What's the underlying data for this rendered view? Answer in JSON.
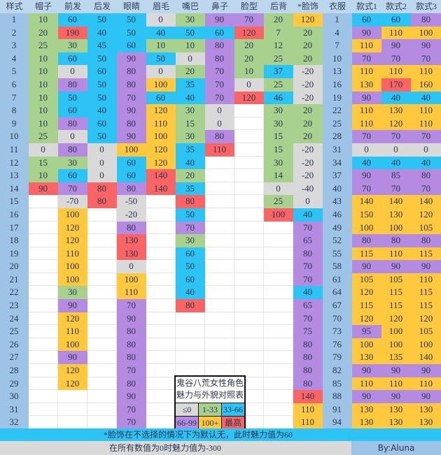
{
  "headers": [
    "样式",
    "帽子",
    "前发",
    "后发",
    "眼睛",
    "眉毛",
    "嘴巴",
    "鼻子",
    "脸型",
    "后背",
    "*脸饰",
    "衣服",
    "款式1",
    "款式2",
    "款式3"
  ],
  "columns": {
    "帽子": [
      10,
      20,
      25,
      10,
      10,
      10,
      10,
      10,
      10,
      25,
      0,
      15,
      10,
      90
    ],
    "前发": [
      60,
      190,
      30,
      60,
      0,
      80,
      50,
      60,
      80,
      0,
      80,
      30,
      60,
      70,
      -70,
      100,
      120,
      120,
      110,
      100,
      100,
      30,
      90,
      120,
      110,
      100,
      90,
      120,
      120
    ],
    "后发": [
      50,
      40,
      45,
      50,
      60,
      50,
      50,
      40,
      60,
      50,
      0,
      0,
      0,
      80,
      80
    ],
    "眼睛": [
      50,
      50,
      60,
      90,
      80,
      80,
      70,
      90,
      80,
      90,
      100,
      60,
      60,
      80,
      -50,
      -20,
      80,
      130,
      130,
      0,
      100,
      110,
      70,
      90,
      80,
      80,
      80,
      70,
      80,
      90,
      70,
      70
    ],
    "眉毛": [
      0,
      40,
      10,
      50,
      0,
      100,
      60,
      120,
      110,
      100,
      120,
      120,
      140,
      140
    ],
    "嘴巴": [
      30,
      50,
      10,
      0,
      20,
      35,
      40,
      30,
      15,
      30,
      35,
      40,
      20,
      35,
      80,
      50,
      70,
      30,
      60,
      50,
      60,
      40,
      80
    ],
    "鼻子": [
      90,
      60,
      80,
      80,
      70,
      70,
      70,
      0,
      0,
      80,
      110
    ],
    "脸型": [
      70,
      120,
      20,
      20,
      10,
      0,
      120
    ],
    "后背": [
      20,
      7,
      12,
      25,
      37,
      25,
      46,
      30,
      30,
      15,
      15,
      30,
      14,
      0,
      25,
      100
    ],
    "*脸饰": [
      120,
      20,
      20,
      20,
      -20,
      -20,
      -20,
      20,
      20,
      20,
      -20,
      -20,
      -20,
      -40,
      0,
      40,
      70,
      65,
      80,
      70,
      70,
      40,
      65,
      70,
      75,
      80,
      80,
      80,
      80,
      140,
      110,
      110
    ],
    "衣服": [
      1,
      4,
      7,
      10,
      13,
      16,
      19,
      22,
      25,
      28,
      31,
      34,
      37,
      40,
      43,
      46,
      49,
      52,
      55,
      58,
      61,
      64,
      67,
      70,
      73,
      76,
      79,
      82,
      85,
      88,
      91,
      94
    ],
    "款式1": [
      60,
      90,
      110,
      70,
      110,
      130,
      90,
      110,
      110,
      70,
      0,
      40,
      90,
      70,
      140,
      150,
      100,
      80,
      115,
      90,
      105,
      120,
      115,
      120,
      95,
      100,
      130,
      90,
      110,
      90,
      130,
      130
    ],
    "款式2": [
      60,
      110,
      90,
      70,
      110,
      170,
      40,
      130,
      120,
      70,
      0,
      40,
      85,
      70,
      140,
      130,
      100,
      80,
      110,
      90,
      105,
      115,
      115,
      120,
      100,
      100,
      135,
      90,
      110,
      90,
      130,
      130
    ],
    "款式3": [
      80,
      100,
      90,
      70,
      110,
      160,
      40,
      110,
      110,
      70,
      0,
      40,
      80,
      70,
      140,
      120,
      105,
      80,
      115,
      90,
      110,
      115,
      115,
      120,
      105,
      100,
      140,
      90,
      110,
      90,
      130,
      130
    ]
  },
  "row_count": 32,
  "legend": {
    "title_line1": "鬼谷八荒女性角色",
    "title_line2": "魅力与外貌对照表",
    "items": [
      {
        "label": "≤0",
        "color": "#d9d9d9"
      },
      {
        "label": "1-33",
        "color": "#a9d18e"
      },
      {
        "label": "33-66",
        "color": "#2cc3f5"
      },
      {
        "label": "66-99",
        "color": "#b48be0"
      },
      {
        "label": "100+",
        "color": "#ffc83d"
      },
      {
        "label": "最高",
        "color": "#fb6464"
      }
    ]
  },
  "note": "*脸饰在不选择的情况下为默认无，此时魅力值为60",
  "footer": {
    "text": "在所有数值为0时魅力值为-300",
    "author": "By:Aluna"
  }
}
